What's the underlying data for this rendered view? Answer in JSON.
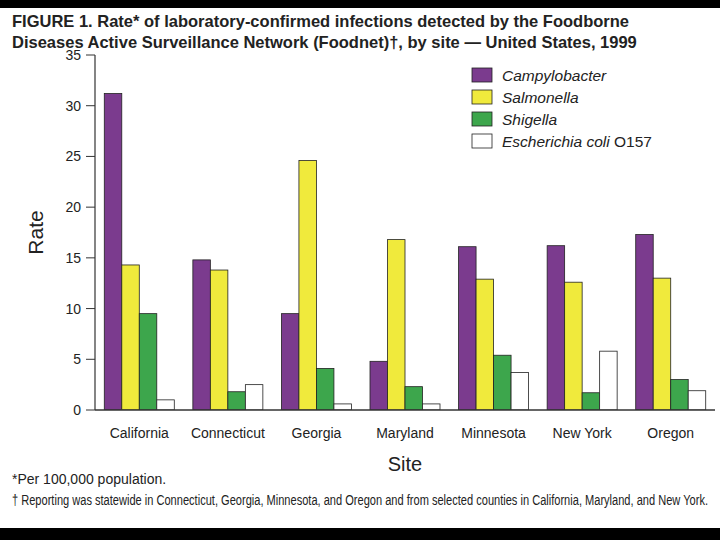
{
  "chart_data": {
    "type": "bar",
    "title": "FIGURE 1. Rate* of laboratory-confirmed infections detected by the Foodborne Diseases Active Surveillance Network (Foodnet)†, by site — United States, 1999",
    "x_label": "Site",
    "y_label": "Rate",
    "annotations": [
      "*Per 100,000 population.",
      "† Reporting was statewide in Connecticut, Georgia, Minnesota, and Oregon and from selected counties in California, Maryland, and New York."
    ],
    "categories": [
      "California",
      "Connecticut",
      "Georgia",
      "Maryland",
      "Minnesota",
      "New York",
      "Oregon"
    ],
    "series": [
      {
        "name": "Campylobacter",
        "color": "#7b3b8e",
        "values": [
          31.2,
          14.8,
          9.5,
          4.8,
          16.1,
          16.2,
          17.3
        ]
      },
      {
        "name": "Salmonella",
        "color": "#f0ea3c",
        "values": [
          14.3,
          13.8,
          24.6,
          16.8,
          12.9,
          12.6,
          13.0
        ]
      },
      {
        "name": "Shigella",
        "color": "#3da64c",
        "values": [
          9.5,
          1.8,
          4.1,
          2.3,
          5.4,
          1.7,
          3.0
        ]
      },
      {
        "name": "Escherichia coli O157",
        "color": "#ffffff",
        "values": [
          1.0,
          2.5,
          0.6,
          0.6,
          3.7,
          5.8,
          1.9
        ]
      }
    ],
    "ylim": [
      0,
      35
    ],
    "yticks": [
      0,
      5,
      10,
      15,
      20,
      25,
      30,
      35
    ],
    "grid": false,
    "legend": "top-right"
  }
}
